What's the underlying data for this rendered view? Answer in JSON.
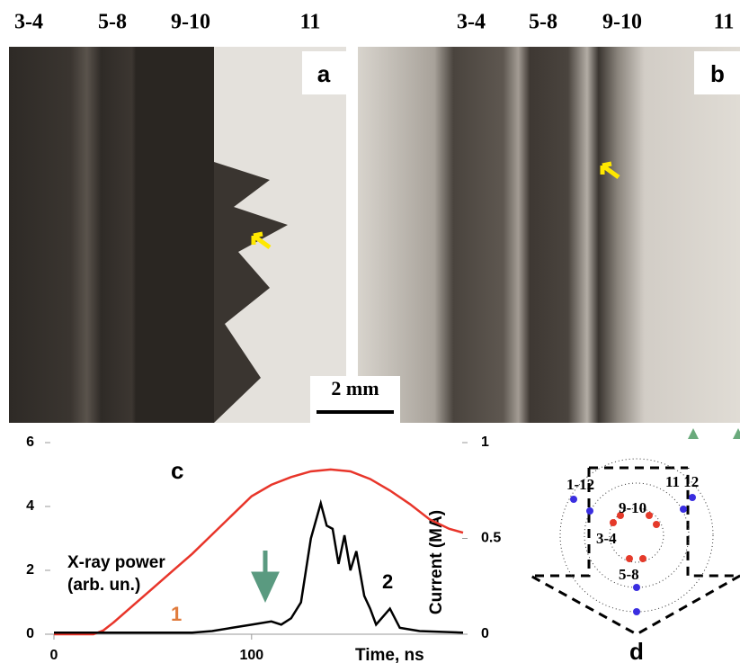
{
  "panels": {
    "a": {
      "label": "a",
      "columns": [
        "3-4",
        "5-8",
        "9-10",
        "11"
      ]
    },
    "b": {
      "label": "b",
      "columns": [
        "3-4",
        "5-8",
        "9-10",
        "11"
      ]
    },
    "scale": "2 mm"
  },
  "chart_data": {
    "type": "line",
    "label": "c",
    "y_label_lines": [
      "X-ray power",
      "(arb. un.)"
    ],
    "y2_label": "Current (MA)",
    "x_label": "Time, ns",
    "xlim": [
      0,
      207
    ],
    "xticks": [
      0,
      100
    ],
    "ylim": [
      0,
      6
    ],
    "yticks": [
      0,
      2,
      4,
      6
    ],
    "y2lim": [
      0,
      1
    ],
    "y2ticks": [
      0,
      0.5,
      1
    ],
    "series": [
      {
        "name": "1",
        "color": "#e8352a",
        "axis": "y2",
        "x": [
          0,
          10,
          20,
          25,
          30,
          40,
          50,
          60,
          70,
          80,
          90,
          100,
          110,
          120,
          130,
          140,
          150,
          160,
          170,
          180,
          190,
          200,
          207
        ],
        "values": [
          0,
          0,
          0,
          0.02,
          0.06,
          0.15,
          0.24,
          0.33,
          0.42,
          0.52,
          0.62,
          0.72,
          0.78,
          0.82,
          0.85,
          0.86,
          0.85,
          0.81,
          0.75,
          0.68,
          0.6,
          0.55,
          0.53
        ]
      },
      {
        "name": "2",
        "color": "#000000",
        "x": [
          0,
          20,
          40,
          60,
          70,
          80,
          90,
          100,
          110,
          115,
          120,
          125,
          130,
          135,
          138,
          141,
          144,
          147,
          150,
          153,
          157,
          160,
          163,
          170,
          175,
          185,
          207
        ],
        "values": [
          0.05,
          0.05,
          0.05,
          0.05,
          0.05,
          0.1,
          0.2,
          0.3,
          0.4,
          0.3,
          0.5,
          1.0,
          3.0,
          4.1,
          3.4,
          3.3,
          2.2,
          3.1,
          2.0,
          2.6,
          1.2,
          0.8,
          0.3,
          0.8,
          0.2,
          0.1,
          0.05
        ]
      }
    ]
  },
  "diagram": {
    "label": "d",
    "points": [
      "1-12",
      "11 12",
      "9-10",
      "3-4",
      "5-8"
    ]
  }
}
